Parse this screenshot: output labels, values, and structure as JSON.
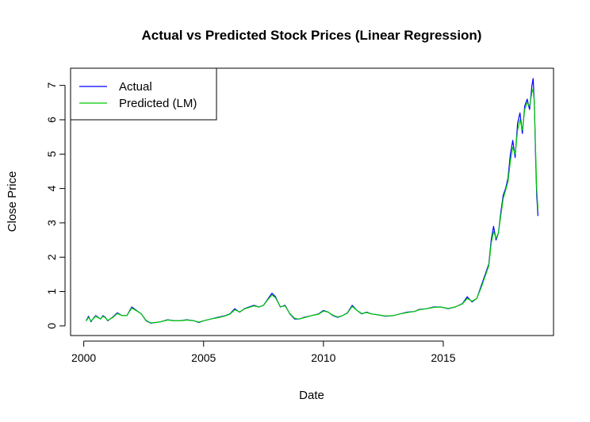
{
  "chart_data": {
    "type": "line",
    "title": "Actual vs Predicted Stock Prices (Linear Regression)",
    "xlabel": "Date",
    "ylabel": "Close Price",
    "xlim": [
      1999.45,
      2019.6
    ],
    "ylim": [
      -0.28,
      7.5
    ],
    "x_ticks": [
      2000,
      2005,
      2010,
      2015
    ],
    "x_tick_labels": [
      "2000",
      "2005",
      "2010",
      "2015"
    ],
    "y_ticks": [
      0,
      1,
      2,
      3,
      4,
      5,
      6,
      7
    ],
    "y_tick_labels": [
      "0",
      "1",
      "2",
      "3",
      "4",
      "5",
      "6",
      "7"
    ],
    "grid": false,
    "legend_position": "top-left",
    "series": [
      {
        "name": "Actual",
        "color": "#0000ff",
        "x": [
          2000.1,
          2000.2,
          2000.3,
          2000.4,
          2000.5,
          2000.6,
          2000.7,
          2000.8,
          2000.9,
          2001.0,
          2001.2,
          2001.4,
          2001.6,
          2001.8,
          2002.0,
          2002.2,
          2002.4,
          2002.6,
          2002.8,
          2003.0,
          2003.2,
          2003.5,
          2003.8,
          2004.0,
          2004.3,
          2004.6,
          2004.8,
          2005.0,
          2005.3,
          2005.6,
          2005.9,
          2006.1,
          2006.3,
          2006.5,
          2006.7,
          2006.9,
          2007.1,
          2007.3,
          2007.5,
          2007.7,
          2007.85,
          2008.0,
          2008.2,
          2008.4,
          2008.6,
          2008.8,
          2009.0,
          2009.2,
          2009.5,
          2009.8,
          2010.0,
          2010.2,
          2010.4,
          2010.6,
          2010.8,
          2011.0,
          2011.2,
          2011.4,
          2011.6,
          2011.8,
          2012.0,
          2012.3,
          2012.6,
          2012.9,
          2013.2,
          2013.5,
          2013.8,
          2014.0,
          2014.3,
          2014.6,
          2014.9,
          2015.2,
          2015.5,
          2015.8,
          2016.0,
          2016.2,
          2016.4,
          2016.6,
          2016.8,
          2016.9,
          2017.0,
          2017.1,
          2017.2,
          2017.3,
          2017.4,
          2017.5,
          2017.6,
          2017.7,
          2017.8,
          2017.9,
          2018.0,
          2018.1,
          2018.2,
          2018.3,
          2018.4,
          2018.5,
          2018.6,
          2018.7,
          2018.75,
          2018.8,
          2018.85,
          2018.9,
          2018.95
        ],
        "values": [
          0.15,
          0.28,
          0.12,
          0.22,
          0.3,
          0.25,
          0.2,
          0.3,
          0.25,
          0.15,
          0.25,
          0.38,
          0.3,
          0.3,
          0.55,
          0.45,
          0.35,
          0.15,
          0.08,
          0.1,
          0.12,
          0.18,
          0.15,
          0.15,
          0.18,
          0.15,
          0.1,
          0.15,
          0.2,
          0.25,
          0.3,
          0.35,
          0.5,
          0.4,
          0.5,
          0.55,
          0.6,
          0.55,
          0.6,
          0.8,
          0.95,
          0.85,
          0.55,
          0.6,
          0.35,
          0.2,
          0.2,
          0.25,
          0.3,
          0.35,
          0.45,
          0.4,
          0.3,
          0.25,
          0.3,
          0.38,
          0.6,
          0.45,
          0.35,
          0.4,
          0.35,
          0.32,
          0.28,
          0.3,
          0.35,
          0.4,
          0.42,
          0.48,
          0.5,
          0.55,
          0.55,
          0.5,
          0.55,
          0.65,
          0.85,
          0.7,
          0.8,
          1.2,
          1.6,
          1.8,
          2.5,
          2.9,
          2.5,
          2.7,
          3.3,
          3.8,
          4.0,
          4.3,
          5.0,
          5.4,
          4.9,
          5.9,
          6.2,
          5.6,
          6.4,
          6.6,
          6.3,
          7.0,
          7.2,
          6.5,
          5.0,
          3.8,
          3.2
        ]
      },
      {
        "name": "Predicted (LM)",
        "color": "#00cc00",
        "x": [
          2000.1,
          2000.2,
          2000.3,
          2000.4,
          2000.5,
          2000.6,
          2000.7,
          2000.8,
          2000.9,
          2001.0,
          2001.2,
          2001.4,
          2001.6,
          2001.8,
          2002.0,
          2002.2,
          2002.4,
          2002.6,
          2002.8,
          2003.0,
          2003.2,
          2003.5,
          2003.8,
          2004.0,
          2004.3,
          2004.6,
          2004.8,
          2005.0,
          2005.3,
          2005.6,
          2005.9,
          2006.1,
          2006.3,
          2006.5,
          2006.7,
          2006.9,
          2007.1,
          2007.3,
          2007.5,
          2007.7,
          2007.85,
          2008.0,
          2008.2,
          2008.4,
          2008.6,
          2008.8,
          2009.0,
          2009.2,
          2009.5,
          2009.8,
          2010.0,
          2010.2,
          2010.4,
          2010.6,
          2010.8,
          2011.0,
          2011.2,
          2011.4,
          2011.6,
          2011.8,
          2012.0,
          2012.3,
          2012.6,
          2012.9,
          2013.2,
          2013.5,
          2013.8,
          2014.0,
          2014.3,
          2014.6,
          2014.9,
          2015.2,
          2015.5,
          2015.8,
          2016.0,
          2016.2,
          2016.4,
          2016.6,
          2016.8,
          2016.9,
          2017.0,
          2017.1,
          2017.2,
          2017.3,
          2017.4,
          2017.5,
          2017.6,
          2017.7,
          2017.8,
          2017.9,
          2018.0,
          2018.1,
          2018.2,
          2018.3,
          2018.4,
          2018.5,
          2018.6,
          2018.7,
          2018.75,
          2018.8,
          2018.85,
          2018.9,
          2018.95
        ],
        "values": [
          0.14,
          0.25,
          0.14,
          0.21,
          0.28,
          0.24,
          0.2,
          0.28,
          0.24,
          0.16,
          0.24,
          0.36,
          0.3,
          0.3,
          0.52,
          0.44,
          0.35,
          0.16,
          0.09,
          0.1,
          0.12,
          0.17,
          0.15,
          0.15,
          0.17,
          0.15,
          0.11,
          0.15,
          0.2,
          0.24,
          0.29,
          0.34,
          0.47,
          0.41,
          0.49,
          0.54,
          0.58,
          0.55,
          0.6,
          0.78,
          0.9,
          0.82,
          0.56,
          0.58,
          0.36,
          0.22,
          0.2,
          0.24,
          0.3,
          0.34,
          0.43,
          0.4,
          0.31,
          0.26,
          0.3,
          0.37,
          0.57,
          0.45,
          0.36,
          0.39,
          0.35,
          0.32,
          0.29,
          0.3,
          0.35,
          0.39,
          0.42,
          0.47,
          0.5,
          0.54,
          0.55,
          0.51,
          0.55,
          0.64,
          0.8,
          0.72,
          0.8,
          1.15,
          1.55,
          1.75,
          2.4,
          2.75,
          2.55,
          2.7,
          3.2,
          3.7,
          3.95,
          4.2,
          4.8,
          5.2,
          5.0,
          5.7,
          6.0,
          5.7,
          6.3,
          6.5,
          6.4,
          6.8,
          6.9,
          6.5,
          5.2,
          4.0,
          3.4
        ]
      }
    ]
  }
}
